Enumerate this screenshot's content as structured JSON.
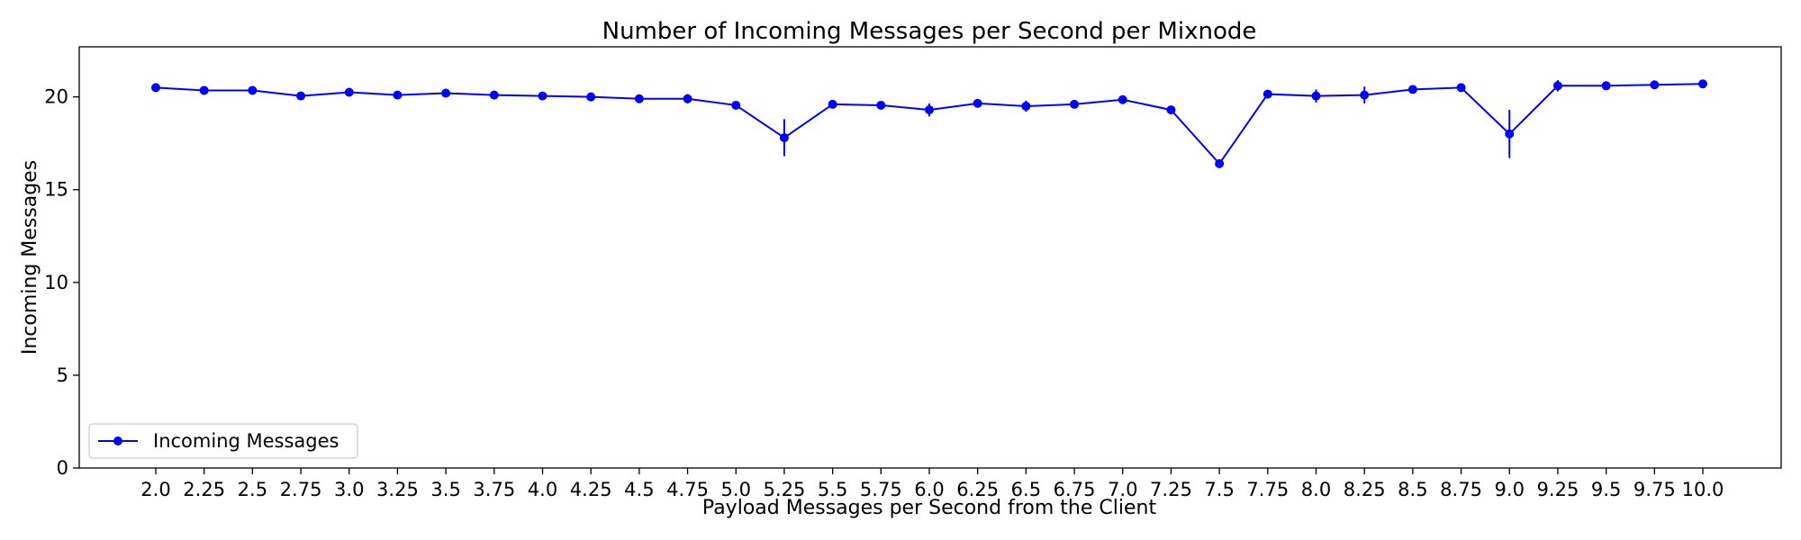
{
  "chart_data": {
    "type": "line",
    "title": "Number of Incoming Messages per Second per Mixnode",
    "xlabel": "Payload Messages per Second from the Client",
    "ylabel": "Incoming Messages",
    "categories": [
      "2.0",
      "2.25",
      "2.5",
      "2.75",
      "3.0",
      "3.25",
      "3.5",
      "3.75",
      "4.0",
      "4.25",
      "4.5",
      "4.75",
      "5.0",
      "5.25",
      "5.5",
      "5.75",
      "6.0",
      "6.25",
      "6.5",
      "6.75",
      "7.0",
      "7.25",
      "7.5",
      "7.75",
      "8.0",
      "8.25",
      "8.5",
      "8.75",
      "9.0",
      "9.25",
      "9.5",
      "9.75",
      "10.0"
    ],
    "yticks": [
      "0",
      "5",
      "10",
      "15",
      "20"
    ],
    "ylim": [
      0,
      22.7
    ],
    "grid": false,
    "legend_position": "lower-left",
    "series": [
      {
        "name": "Incoming Messages",
        "color": "#0000ff",
        "marker": "circle",
        "values": [
          20.5,
          20.35,
          20.35,
          20.05,
          20.25,
          20.1,
          20.2,
          20.1,
          20.05,
          20.0,
          19.9,
          19.9,
          19.55,
          17.8,
          19.6,
          19.55,
          19.3,
          19.65,
          19.5,
          19.6,
          19.85,
          19.3,
          16.4,
          20.15,
          20.05,
          20.1,
          20.4,
          20.5,
          18.0,
          20.6,
          20.6,
          20.65,
          20.7
        ],
        "errors": [
          0.05,
          0.05,
          0.05,
          0.2,
          0.05,
          0.05,
          0.05,
          0.05,
          0.05,
          0.05,
          0.05,
          0.25,
          0.1,
          1.0,
          0.05,
          0.2,
          0.35,
          0.05,
          0.3,
          0.05,
          0.05,
          0.05,
          0.15,
          0.1,
          0.35,
          0.45,
          0.05,
          0.05,
          1.3,
          0.3,
          0.05,
          0.05,
          0.05
        ]
      }
    ]
  }
}
